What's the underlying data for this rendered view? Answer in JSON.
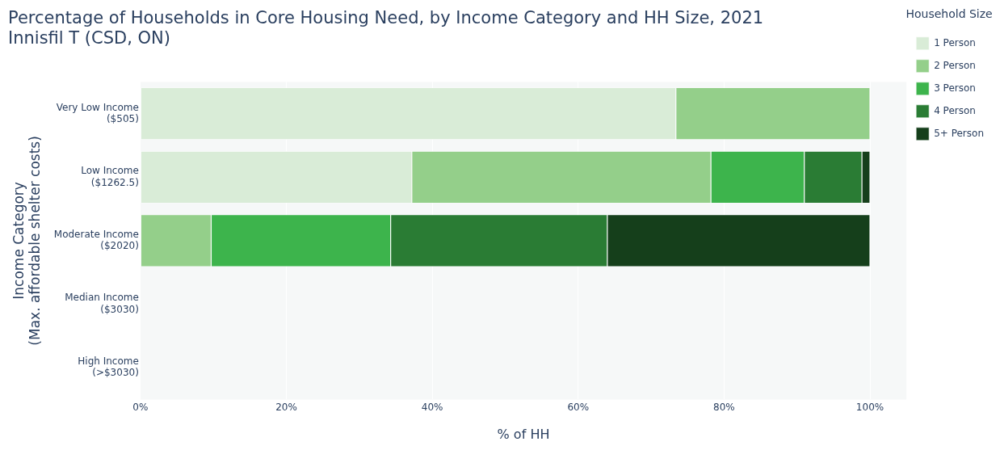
{
  "chart_data": {
    "type": "bar",
    "orientation": "horizontal",
    "stacked": true,
    "title": "Percentage of Households in Core Housing Need, by Income Category and HH Size, 2021\nInnisfil T (CSD, ON)",
    "xlabel": "% of HH",
    "ylabel": "Income Category\n(Max. affordable shelter costs)",
    "legend_title": "Household Size",
    "categories": [
      "Very Low Income\n($505)",
      "Low Income\n($1262.5)",
      "Moderate Income\n($2020)",
      "Median Income\n($3030)",
      "High Income\n(>$3030)"
    ],
    "series": [
      {
        "name": "1 Person",
        "color": "#d9ecd7",
        "values": [
          73.4,
          37.2,
          0,
          0,
          0
        ]
      },
      {
        "name": "2 Person",
        "color": "#94cf8a",
        "values": [
          26.6,
          41.0,
          9.7,
          0,
          0
        ]
      },
      {
        "name": "3 Person",
        "color": "#3db44c",
        "values": [
          0,
          12.8,
          24.6,
          0,
          0
        ]
      },
      {
        "name": "4 Person",
        "color": "#2a7c34",
        "values": [
          0,
          7.9,
          29.7,
          0,
          0
        ]
      },
      {
        "name": "5+ Person",
        "color": "#153f1b",
        "values": [
          0,
          1.1,
          36.0,
          0,
          0
        ]
      }
    ],
    "xlim": [
      0,
      105
    ],
    "xticks": [
      {
        "value": 0,
        "label": "0%"
      },
      {
        "value": 20,
        "label": "20%"
      },
      {
        "value": 40,
        "label": "40%"
      },
      {
        "value": 60,
        "label": "60%"
      },
      {
        "value": 80,
        "label": "80%"
      },
      {
        "value": 100,
        "label": "100%"
      }
    ],
    "grid": "x",
    "legend": "top right"
  }
}
